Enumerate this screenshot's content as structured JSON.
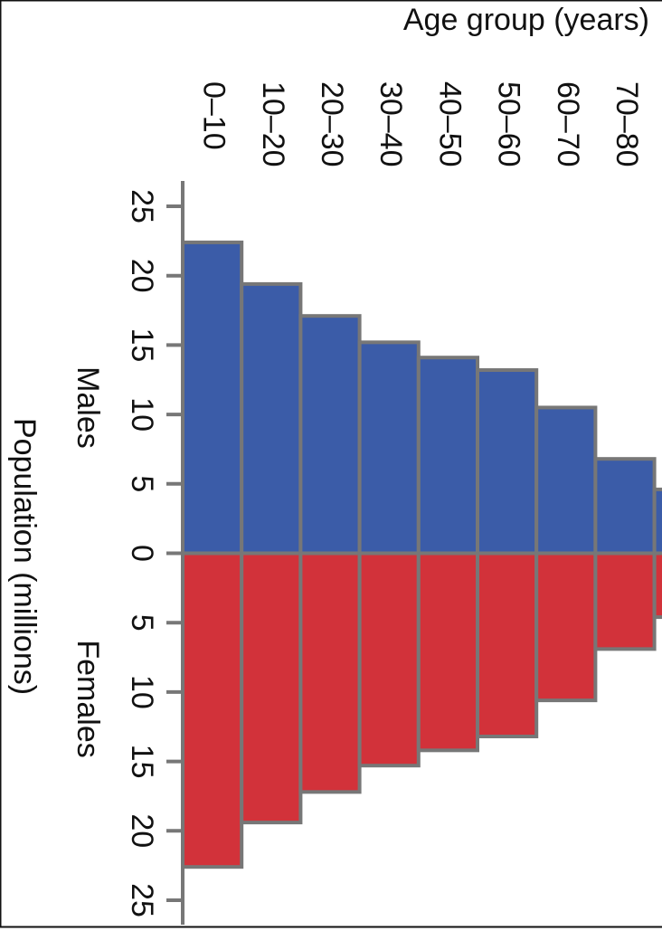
{
  "chart_data": {
    "type": "pyramid",
    "title": "Age group (years)",
    "y_label": "Population (millions)",
    "categories": [
      "0–10",
      "10–20",
      "20–30",
      "30–40",
      "40–50",
      "50–60",
      "60–70",
      "70–80",
      null
    ],
    "series": [
      {
        "name": "Males",
        "color": "#3b5ca8",
        "values": [
          22.4,
          19.4,
          17.1,
          15.2,
          14.1,
          13.2,
          10.5,
          6.8,
          4.6
        ]
      },
      {
        "name": "Females",
        "color": "#d2323a",
        "values": [
          22.6,
          19.4,
          17.2,
          15.3,
          14.2,
          13.2,
          10.6,
          6.9,
          4.6
        ]
      }
    ],
    "ylim": [
      -25,
      25
    ],
    "yticks": [
      {
        "value": -25,
        "label": "25"
      },
      {
        "value": -20,
        "label": "20"
      },
      {
        "value": -15,
        "label": "15"
      },
      {
        "value": -10,
        "label": "10"
      },
      {
        "value": -5,
        "label": "5"
      },
      0,
      5,
      10,
      15,
      20,
      25
    ]
  }
}
